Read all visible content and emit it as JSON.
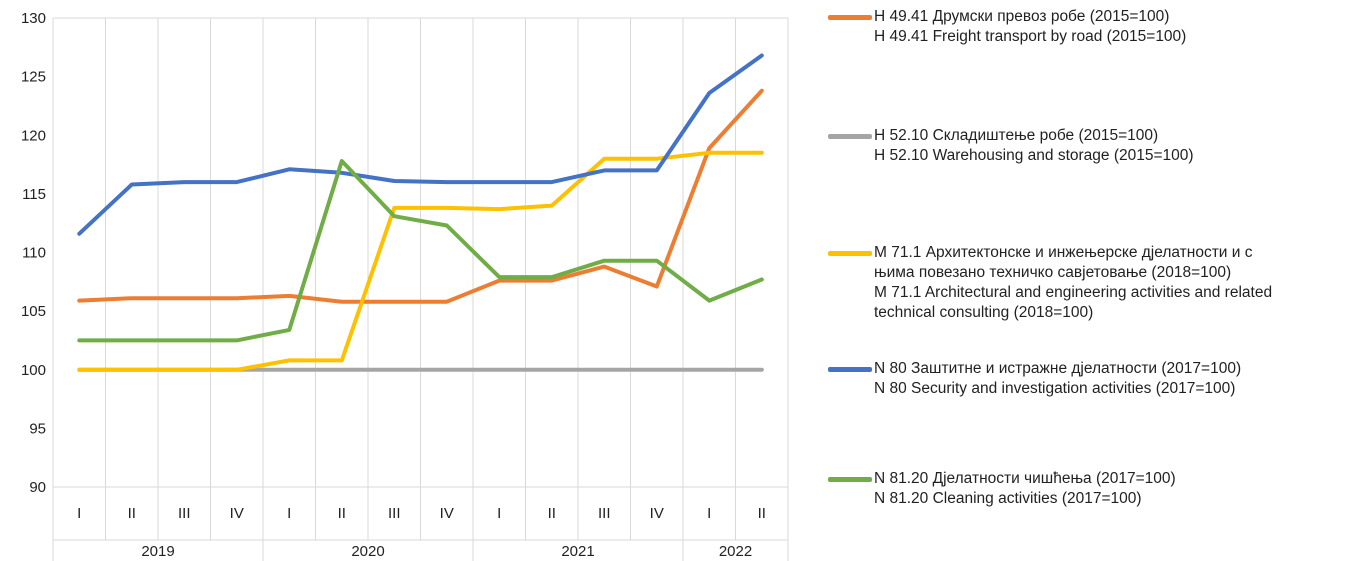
{
  "chart_data": {
    "type": "line",
    "categories": [
      "I",
      "II",
      "III",
      "IV",
      "I",
      "II",
      "III",
      "IV",
      "I",
      "II",
      "III",
      "IV",
      "I",
      "II"
    ],
    "year_groups": [
      {
        "label": "2019",
        "count": 4
      },
      {
        "label": "2020",
        "count": 4
      },
      {
        "label": "2021",
        "count": 4
      },
      {
        "label": "2022",
        "count": 2
      }
    ],
    "ylim": [
      90,
      130
    ],
    "yticks": [
      "90",
      "95",
      "100",
      "105",
      "110",
      "115",
      "120",
      "125",
      "130"
    ],
    "grid": "vertical",
    "legend_position": "right",
    "series": [
      {
        "id": "freight",
        "name_lines": [
          "H 49.41 Друмски превоз робе (2015=100)",
          "H 49.41 Freight transport by road (2015=100)"
        ],
        "color": "#ED7D31",
        "values": [
          105.9,
          106.1,
          106.1,
          106.1,
          106.3,
          105.8,
          105.8,
          105.8,
          107.6,
          107.6,
          108.8,
          107.1,
          118.9,
          123.8
        ]
      },
      {
        "id": "warehousing",
        "name_lines": [
          "H 52.10 Складиштење робе (2015=100)",
          "H 52.10 Warehousing and storage (2015=100)"
        ],
        "color": "#A5A5A5",
        "values": [
          100,
          100,
          100,
          100,
          100,
          100,
          100,
          100,
          100,
          100,
          100,
          100,
          100,
          100
        ]
      },
      {
        "id": "architectural",
        "name_lines": [
          "M 71.1 Архитектонске и инжењерске дјелатности и с",
          "њима повезано техничко савјетовање (2018=100)",
          "M 71.1 Architectural and engineering activities and related",
          "technical consulting (2018=100)"
        ],
        "color": "#FFC000",
        "values": [
          100,
          100,
          100,
          100,
          100.8,
          100.8,
          113.8,
          113.8,
          113.7,
          114.0,
          118.0,
          118.0,
          118.5,
          118.5
        ]
      },
      {
        "id": "security",
        "name_lines": [
          "N 80 Заштитне и истражне дјелатности (2017=100)",
          "N 80 Security and investigation activities (2017=100)"
        ],
        "color": "#4472C4",
        "values": [
          111.6,
          115.8,
          116.0,
          116.0,
          117.1,
          116.8,
          116.1,
          116.0,
          116.0,
          116.0,
          117.0,
          117.0,
          123.6,
          126.8
        ]
      },
      {
        "id": "cleaning",
        "name_lines": [
          "N 81.20 Дјелатности чишћења  (2017=100)",
          "N 81.20 Cleaning activities (2017=100)"
        ],
        "color": "#70AD47",
        "values": [
          102.5,
          102.5,
          102.5,
          102.5,
          103.4,
          117.8,
          113.1,
          112.3,
          107.9,
          107.9,
          109.3,
          109.3,
          105.9,
          107.7
        ]
      }
    ]
  }
}
